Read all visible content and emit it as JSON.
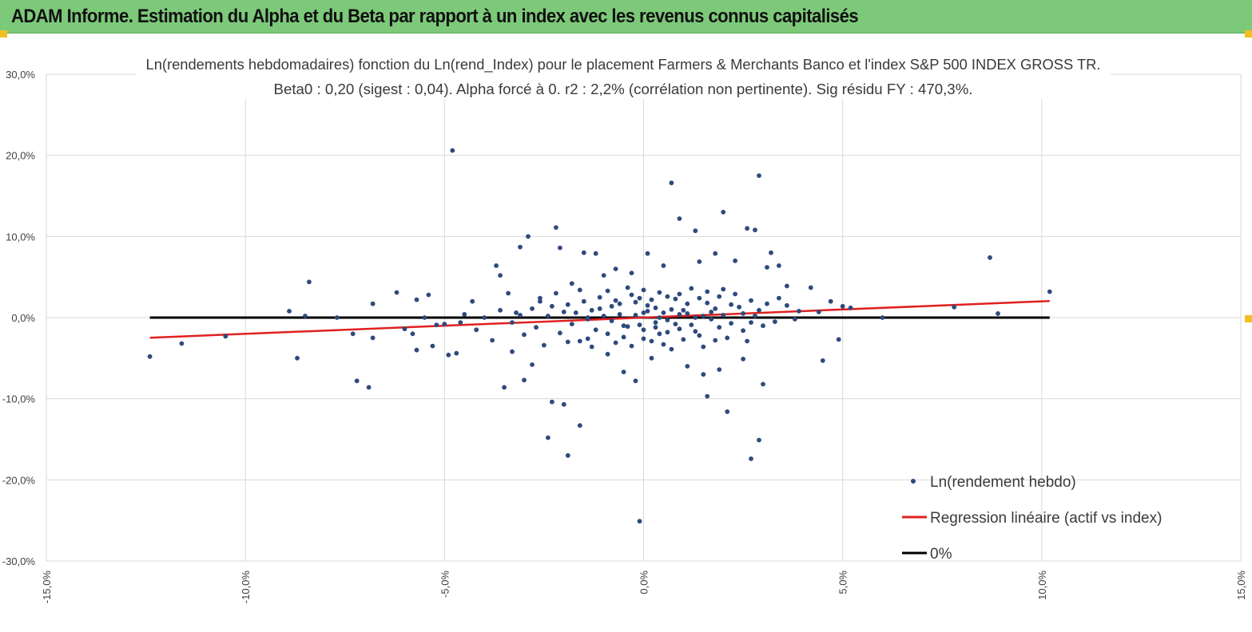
{
  "report": {
    "title": "ADAM Informe. Estimation du Alpha et du Beta par rapport à un index avec les revenus connus capitalisés"
  },
  "chart_data": {
    "type": "scatter",
    "title_line1": "Ln(rendements hebdomadaires) fonction du Ln(rend_Index) pour le placement Farmers & Merchants Banco et l'index S&P 500 INDEX GROSS TR.",
    "title_line2": "Beta0 : 0,20 (sigest : 0,04).  Alpha forcé à 0. r2 : 2,2% (corrélation non pertinente). Sig résidu FY : 470,3%.",
    "xlim": [
      -15,
      15
    ],
    "ylim": [
      -30,
      30
    ],
    "x_ticks": [
      -15,
      -10,
      -5,
      0,
      5,
      10,
      15
    ],
    "y_ticks": [
      -30,
      -20,
      -10,
      0,
      10,
      20,
      30
    ],
    "x_tick_labels": [
      "-15,0%",
      "-10,0%",
      "-5,0%",
      "0,0%",
      "5,0%",
      "10,0%",
      "15,0%"
    ],
    "y_tick_labels": [
      "-30,0%",
      "-20,0%",
      "-10,0%",
      "0,0%",
      "10,0%",
      "20,0%",
      "30,0%"
    ],
    "grid": true,
    "legend_position": "bottom-right",
    "legend": [
      {
        "label": "Ln(rendement hebdo)",
        "kind": "marker",
        "color": "#2e4a7d"
      },
      {
        "label": "Regression linéaire (actif vs index)",
        "kind": "line",
        "color": "#e02020"
      },
      {
        "label": "0%",
        "kind": "line",
        "color": "#000000"
      }
    ],
    "series": [
      {
        "name": "Ln(rendement hebdo)",
        "color": "#2e4a7d",
        "points": [
          [
            -12.4,
            -4.8
          ],
          [
            -11.6,
            -3.2
          ],
          [
            -10.5,
            -2.3
          ],
          [
            -8.9,
            0.8
          ],
          [
            -8.7,
            -5.0
          ],
          [
            -8.4,
            4.4
          ],
          [
            -8.5,
            0.2
          ],
          [
            -7.7,
            0.0
          ],
          [
            -7.3,
            -2.0
          ],
          [
            -7.2,
            -7.8
          ],
          [
            -6.9,
            -8.6
          ],
          [
            -6.8,
            1.7
          ],
          [
            -6.8,
            -2.5
          ],
          [
            -6.2,
            3.1
          ],
          [
            -6.0,
            -1.4
          ],
          [
            -5.8,
            -2.0
          ],
          [
            -5.7,
            -4.0
          ],
          [
            -5.7,
            2.2
          ],
          [
            -5.5,
            0.0
          ],
          [
            -5.4,
            2.8
          ],
          [
            -5.3,
            -3.5
          ],
          [
            -5.2,
            -0.9
          ],
          [
            -5.0,
            -0.8
          ],
          [
            -4.9,
            -4.6
          ],
          [
            -4.8,
            20.6
          ],
          [
            -4.7,
            -4.4
          ],
          [
            -4.6,
            -0.6
          ],
          [
            -4.5,
            0.4
          ],
          [
            -4.3,
            2.0
          ],
          [
            -4.2,
            -1.5
          ],
          [
            -4.0,
            0.0
          ],
          [
            -3.8,
            -2.8
          ],
          [
            -3.7,
            6.4
          ],
          [
            -3.6,
            5.2
          ],
          [
            -3.5,
            -8.6
          ],
          [
            -3.4,
            3.0
          ],
          [
            -3.3,
            -4.2
          ],
          [
            -3.2,
            0.6
          ],
          [
            -3.1,
            8.7
          ],
          [
            -3.0,
            -7.7
          ],
          [
            -2.9,
            10.0
          ],
          [
            -2.8,
            -5.8
          ],
          [
            -2.6,
            2.0
          ],
          [
            -2.4,
            -14.8
          ],
          [
            -2.3,
            -10.4
          ],
          [
            -2.2,
            11.1
          ],
          [
            -2.1,
            8.6
          ],
          [
            -2.0,
            -10.7
          ],
          [
            -1.9,
            -17.0
          ],
          [
            -1.8,
            4.2
          ],
          [
            -1.6,
            -13.3
          ],
          [
            -1.5,
            8.0
          ],
          [
            -1.4,
            -2.6
          ],
          [
            -1.2,
            7.9
          ],
          [
            -1.0,
            5.2
          ],
          [
            -0.9,
            -4.5
          ],
          [
            -0.7,
            6.0
          ],
          [
            -0.5,
            -6.7
          ],
          [
            -0.3,
            5.5
          ],
          [
            -0.2,
            -7.8
          ],
          [
            -0.1,
            -25.1
          ],
          [
            0.1,
            7.9
          ],
          [
            0.2,
            -5.0
          ],
          [
            0.5,
            6.4
          ],
          [
            0.7,
            16.6
          ],
          [
            0.9,
            12.2
          ],
          [
            1.1,
            -6.0
          ],
          [
            1.3,
            10.7
          ],
          [
            1.4,
            6.9
          ],
          [
            1.5,
            -7.0
          ],
          [
            1.6,
            -9.7
          ],
          [
            1.8,
            7.9
          ],
          [
            1.9,
            -6.4
          ],
          [
            2.0,
            13.0
          ],
          [
            2.1,
            -11.6
          ],
          [
            2.3,
            7.0
          ],
          [
            2.5,
            -5.1
          ],
          [
            2.6,
            11.0
          ],
          [
            2.7,
            -17.4
          ],
          [
            2.8,
            10.8
          ],
          [
            2.9,
            17.5
          ],
          [
            2.9,
            -15.1
          ],
          [
            3.0,
            -8.2
          ],
          [
            3.1,
            6.2
          ],
          [
            3.2,
            8.0
          ],
          [
            3.4,
            6.4
          ],
          [
            3.6,
            3.9
          ],
          [
            3.9,
            0.8
          ],
          [
            4.2,
            3.7
          ],
          [
            4.4,
            0.7
          ],
          [
            4.5,
            -5.3
          ],
          [
            4.7,
            2.0
          ],
          [
            4.9,
            -2.7
          ],
          [
            5.0,
            1.4
          ],
          [
            5.2,
            1.2
          ],
          [
            6.0,
            0.0
          ],
          [
            7.8,
            1.3
          ],
          [
            8.7,
            7.4
          ],
          [
            8.9,
            0.5
          ],
          [
            10.2,
            3.2
          ],
          [
            0.3,
            1.2
          ],
          [
            -0.4,
            -1.1
          ],
          [
            1.1,
            0.5
          ],
          [
            -1.3,
            0.9
          ],
          [
            2.2,
            -0.7
          ],
          [
            0.8,
            2.3
          ],
          [
            -0.9,
            -2.0
          ],
          [
            1.6,
            1.8
          ],
          [
            -2.4,
            0.2
          ],
          [
            2.9,
            0.9
          ],
          [
            0.0,
            -2.6
          ],
          [
            0.6,
            -0.3
          ],
          [
            -1.8,
            -0.8
          ],
          [
            1.9,
            2.6
          ],
          [
            -0.2,
            1.9
          ],
          [
            1.4,
            -2.2
          ],
          [
            -2.8,
            1.1
          ],
          [
            3.3,
            -0.5
          ],
          [
            0.4,
            3.1
          ],
          [
            -1.1,
            2.5
          ],
          [
            2.5,
            -1.6
          ],
          [
            -0.6,
            0.4
          ],
          [
            0.9,
            -1.4
          ],
          [
            -3.3,
            -0.6
          ],
          [
            1.2,
            3.6
          ],
          [
            -1.6,
            -2.9
          ],
          [
            2.7,
            2.1
          ],
          [
            0.1,
            0.8
          ],
          [
            -0.8,
            1.4
          ],
          [
            1.7,
            -0.2
          ],
          [
            -2.1,
            -1.9
          ],
          [
            3.6,
            1.5
          ],
          [
            0.5,
            -3.3
          ],
          [
            -0.3,
            2.8
          ],
          [
            2.0,
            0.3
          ],
          [
            -1.4,
            0.0
          ],
          [
            1.0,
            -2.7
          ],
          [
            -2.6,
            2.4
          ],
          [
            0.7,
            1.0
          ],
          [
            -0.1,
            -0.9
          ],
          [
            2.4,
            1.3
          ],
          [
            -1.9,
            1.6
          ],
          [
            1.5,
            -3.6
          ],
          [
            0.2,
            2.2
          ],
          [
            -0.7,
            -3.1
          ],
          [
            3.0,
            -1.0
          ],
          [
            -3.0,
            -2.1
          ],
          [
            1.3,
            0.0
          ],
          [
            0.0,
            3.4
          ],
          [
            -1.2,
            -1.5
          ],
          [
            2.1,
            -2.5
          ],
          [
            0.6,
            -1.8
          ],
          [
            -2.2,
            3.0
          ],
          [
            1.8,
            1.1
          ],
          [
            -0.5,
            -2.4
          ],
          [
            0.9,
            2.9
          ],
          [
            -1.7,
            0.6
          ],
          [
            2.6,
            -2.9
          ],
          [
            0.3,
            -0.6
          ],
          [
            -0.9,
            3.3
          ],
          [
            1.1,
            1.7
          ],
          [
            -3.6,
            0.9
          ],
          [
            3.8,
            -0.2
          ],
          [
            0.4,
            -2.0
          ],
          [
            -0.2,
            0.3
          ],
          [
            1.6,
            3.2
          ],
          [
            -2.5,
            -3.4
          ],
          [
            2.3,
            2.9
          ],
          [
            -1.0,
            0.2
          ],
          [
            0.8,
            -0.8
          ],
          [
            -1.5,
            2.0
          ],
          [
            1.9,
            -1.2
          ],
          [
            0.0,
            -1.5
          ],
          [
            -0.6,
            1.7
          ],
          [
            2.8,
            0.2
          ],
          [
            -2.0,
            0.7
          ],
          [
            1.4,
            2.4
          ],
          [
            0.5,
            0.6
          ],
          [
            -1.3,
            -3.6
          ],
          [
            3.4,
            2.4
          ],
          [
            0.2,
            -2.9
          ],
          [
            -0.8,
            -0.4
          ],
          [
            1.2,
            -0.9
          ],
          [
            -2.7,
            -1.2
          ],
          [
            2.0,
            3.5
          ],
          [
            -0.4,
            3.7
          ],
          [
            0.7,
            -3.9
          ],
          [
            1.7,
            0.7
          ],
          [
            -1.1,
            1.1
          ],
          [
            2.5,
            0.5
          ],
          [
            0.1,
            1.5
          ],
          [
            -0.3,
            -3.5
          ],
          [
            1.0,
            0.9
          ],
          [
            -1.9,
            -3.0
          ],
          [
            3.1,
            1.7
          ],
          [
            0.6,
            2.6
          ],
          [
            -0.5,
            -1.0
          ],
          [
            1.5,
            0.2
          ],
          [
            -2.3,
            1.4
          ],
          [
            2.2,
            1.6
          ],
          [
            0.3,
            -1.2
          ],
          [
            -1.6,
            3.4
          ],
          [
            0.9,
            0.4
          ],
          [
            -0.1,
            2.4
          ],
          [
            1.3,
            -1.7
          ],
          [
            -3.1,
            0.3
          ],
          [
            2.7,
            -0.6
          ],
          [
            0.4,
            0.0
          ],
          [
            -0.7,
            2.1
          ],
          [
            1.8,
            -2.8
          ],
          [
            -1.4,
            -0.2
          ],
          [
            0.0,
            0.6
          ]
        ]
      },
      {
        "name": "Regression linéaire (actif vs index)",
        "color": "#e02020",
        "points": [
          [
            -12.4,
            -2.48
          ],
          [
            10.2,
            2.04
          ]
        ]
      },
      {
        "name": "0%",
        "color": "#000000",
        "points": [
          [
            -12.4,
            0
          ],
          [
            10.2,
            0
          ]
        ]
      }
    ]
  }
}
